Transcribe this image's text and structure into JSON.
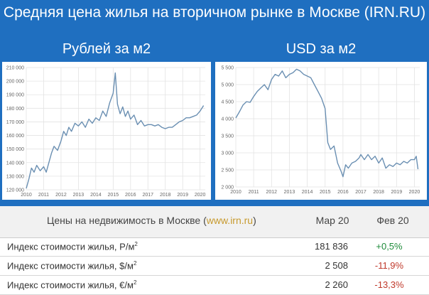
{
  "header": {
    "title": "Средняя цена жилья на вторичном рынке в Москве (IRN.RU)",
    "left_subtitle": "Рублей за м2",
    "right_subtitle": "USD за м2"
  },
  "chart_data": [
    {
      "type": "line",
      "title": "Рублей за м2",
      "xlabel": "",
      "ylabel": "",
      "x_ticks": [
        "2010",
        "2011",
        "2012",
        "2013",
        "2014",
        "2015",
        "2016",
        "2017",
        "2018",
        "2019",
        "2020"
      ],
      "y_ticks": [
        "120 000",
        "130 000",
        "140 000",
        "150 000",
        "160 000",
        "170 000",
        "180 000",
        "190 000",
        "200 000",
        "210 000"
      ],
      "ylim": [
        120000,
        210000
      ],
      "xlim": [
        2010,
        2020.3
      ],
      "grid": true,
      "series": [
        {
          "name": "",
          "x": [
            2010.0,
            2010.15,
            2010.3,
            2010.45,
            2010.6,
            2010.8,
            2011.0,
            2011.15,
            2011.3,
            2011.45,
            2011.6,
            2011.8,
            2012.0,
            2012.15,
            2012.3,
            2012.45,
            2012.6,
            2012.8,
            2013.0,
            2013.2,
            2013.4,
            2013.6,
            2013.8,
            2014.0,
            2014.2,
            2014.4,
            2014.6,
            2014.8,
            2015.0,
            2015.12,
            2015.25,
            2015.4,
            2015.55,
            2015.7,
            2015.85,
            2016.0,
            2016.2,
            2016.4,
            2016.6,
            2016.8,
            2017.0,
            2017.2,
            2017.4,
            2017.6,
            2017.8,
            2018.0,
            2018.2,
            2018.4,
            2018.6,
            2018.8,
            2019.0,
            2019.2,
            2019.4,
            2019.6,
            2019.8,
            2020.0,
            2020.2
          ],
          "values": [
            121000,
            128000,
            136000,
            133000,
            138000,
            134000,
            137000,
            133000,
            140000,
            147000,
            152000,
            149000,
            156000,
            163000,
            160000,
            166000,
            163000,
            169000,
            167000,
            170000,
            166000,
            172000,
            169000,
            173000,
            171000,
            178000,
            174000,
            184000,
            191000,
            206000,
            183000,
            176000,
            181000,
            174000,
            178000,
            172000,
            175000,
            168000,
            171000,
            167000,
            168000,
            168000,
            167000,
            168000,
            166000,
            165000,
            166000,
            166000,
            168000,
            170000,
            171000,
            173000,
            173000,
            174000,
            175000,
            178000,
            182000
          ]
        }
      ]
    },
    {
      "type": "line",
      "title": "USD за м2",
      "xlabel": "",
      "ylabel": "",
      "x_ticks": [
        "2010",
        "2011",
        "2012",
        "2013",
        "2014",
        "2015",
        "2016",
        "2017",
        "2018",
        "2019",
        "2020"
      ],
      "y_ticks": [
        "2 000",
        "2 500",
        "3 000",
        "3 500",
        "4 000",
        "4 500",
        "5 000",
        "5 500"
      ],
      "ylim": [
        2000,
        5500
      ],
      "xlim": [
        2010,
        2020.3
      ],
      "grid": true,
      "series": [
        {
          "name": "",
          "x": [
            2010.0,
            2010.2,
            2010.4,
            2010.6,
            2010.8,
            2011.0,
            2011.2,
            2011.4,
            2011.6,
            2011.8,
            2012.0,
            2012.2,
            2012.4,
            2012.6,
            2012.8,
            2013.0,
            2013.2,
            2013.4,
            2013.6,
            2013.8,
            2014.0,
            2014.2,
            2014.4,
            2014.6,
            2014.8,
            2015.0,
            2015.15,
            2015.3,
            2015.5,
            2015.7,
            2015.9,
            2016.0,
            2016.15,
            2016.3,
            2016.5,
            2016.7,
            2016.9,
            2017.0,
            2017.2,
            2017.4,
            2017.6,
            2017.8,
            2018.0,
            2018.2,
            2018.4,
            2018.6,
            2018.8,
            2019.0,
            2019.2,
            2019.4,
            2019.6,
            2019.8,
            2020.0,
            2020.1,
            2020.2
          ],
          "values": [
            4020,
            4200,
            4400,
            4500,
            4480,
            4650,
            4800,
            4900,
            5000,
            4850,
            5150,
            5300,
            5250,
            5400,
            5200,
            5300,
            5350,
            5450,
            5400,
            5300,
            5250,
            5200,
            5000,
            4800,
            4600,
            4300,
            3300,
            3100,
            3200,
            2700,
            2450,
            2300,
            2650,
            2550,
            2700,
            2750,
            2850,
            2950,
            2800,
            2950,
            2800,
            2900,
            2700,
            2850,
            2550,
            2650,
            2600,
            2700,
            2650,
            2750,
            2700,
            2800,
            2800,
            2900,
            2520
          ]
        }
      ]
    }
  ],
  "table": {
    "header_prefix": "Цены на недвижимость в Москве (",
    "header_link": "www.irn.ru",
    "header_suffix": ")",
    "col_current": "Мар 20",
    "col_change": "Фев 20",
    "rows": [
      {
        "name": "Индекс стоимости жилья, Р/м",
        "sup": "2",
        "value": "181 836",
        "change": "+0,5%",
        "color": "#1e8b3a"
      },
      {
        "name": "Индекс стоимости жилья, $/м",
        "sup": "2",
        "value": "2 508",
        "change": "-11,9%",
        "color": "#c0392b"
      },
      {
        "name": "Индекс стоимости жилья, €/м",
        "sup": "2",
        "value": "2 260",
        "change": "-13,3%",
        "color": "#c0392b"
      }
    ]
  },
  "colors": {
    "background": "#1f6fc0",
    "line": "#6a8fb2",
    "grid": "#e3e3e3",
    "positive": "#1e8b3a",
    "negative": "#c0392b",
    "link": "#c79a2e"
  }
}
